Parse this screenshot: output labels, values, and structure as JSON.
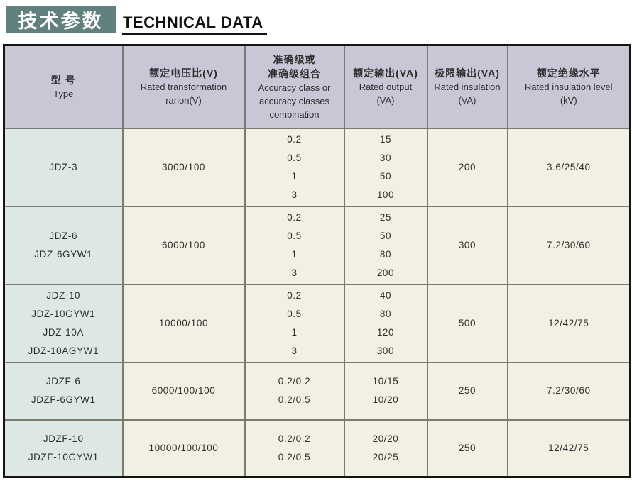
{
  "page_title": {
    "cn": "技术参数",
    "en": "TECHNICAL DATA"
  },
  "colors": {
    "title_bg": "#61817e",
    "header_bg": "#cac6d6",
    "type_col_bg": "#dde7e3",
    "cell_bg": "#f1f0e3",
    "grid_line": "#787b6e",
    "outer_border": "#151515"
  },
  "table": {
    "columns": [
      {
        "id": "type",
        "cn": [
          "型  号"
        ],
        "en": [
          "Type"
        ]
      },
      {
        "id": "ratio",
        "cn": [
          "额定电压比(V)"
        ],
        "en": [
          "Rated transformation",
          "rarion(V)"
        ]
      },
      {
        "id": "accuracy",
        "cn": [
          "准确级或",
          "准确级组合"
        ],
        "en": [
          "Accuracy class or",
          "accuracy classes",
          "combination"
        ]
      },
      {
        "id": "rated-output",
        "cn": [
          "额定输出(VA)"
        ],
        "en": [
          "Rated output",
          "(VA)"
        ]
      },
      {
        "id": "limit-output",
        "cn": [
          "极限输出(VA)"
        ],
        "en": [
          "Rated insulation",
          "(VA)"
        ]
      },
      {
        "id": "insulation-level",
        "cn": [
          "额定绝缘水平"
        ],
        "en": [
          "Rated insulation level",
          "(kV)"
        ]
      }
    ],
    "rows": [
      {
        "types": [
          "JDZ-3"
        ],
        "ratio": "3000/100",
        "accuracy": [
          "0.2",
          "0.5",
          "1",
          "3"
        ],
        "output": [
          "15",
          "30",
          "50",
          "100"
        ],
        "limit": "200",
        "insulation": "3.6/25/40"
      },
      {
        "types": [
          "JDZ-6",
          "JDZ-6GYW1"
        ],
        "ratio": "6000/100",
        "accuracy": [
          "0.2",
          "0.5",
          "1",
          "3"
        ],
        "output": [
          "25",
          "50",
          "80",
          "200"
        ],
        "limit": "300",
        "insulation": "7.2/30/60"
      },
      {
        "types": [
          "JDZ-10",
          "JDZ-10GYW1",
          "JDZ-10A",
          "JDZ-10AGYW1"
        ],
        "ratio": "10000/100",
        "accuracy": [
          "0.2",
          "0.5",
          "1",
          "3"
        ],
        "output": [
          "40",
          "80",
          "120",
          "300"
        ],
        "limit": "500",
        "insulation": "12/42/75"
      },
      {
        "types": [
          "JDZF-6",
          "JDZF-6GYW1"
        ],
        "ratio": "6000/100/100",
        "accuracy": [
          "0.2/0.2",
          "0.2/0.5"
        ],
        "output": [
          "10/15",
          "10/20"
        ],
        "limit": "250",
        "insulation": "7.2/30/60"
      },
      {
        "types": [
          "JDZF-10",
          "JDZF-10GYW1"
        ],
        "ratio": "10000/100/100",
        "accuracy": [
          "0.2/0.2",
          "0.2/0.5"
        ],
        "output": [
          "20/20",
          "20/25"
        ],
        "limit": "250",
        "insulation": "12/42/75"
      }
    ]
  }
}
